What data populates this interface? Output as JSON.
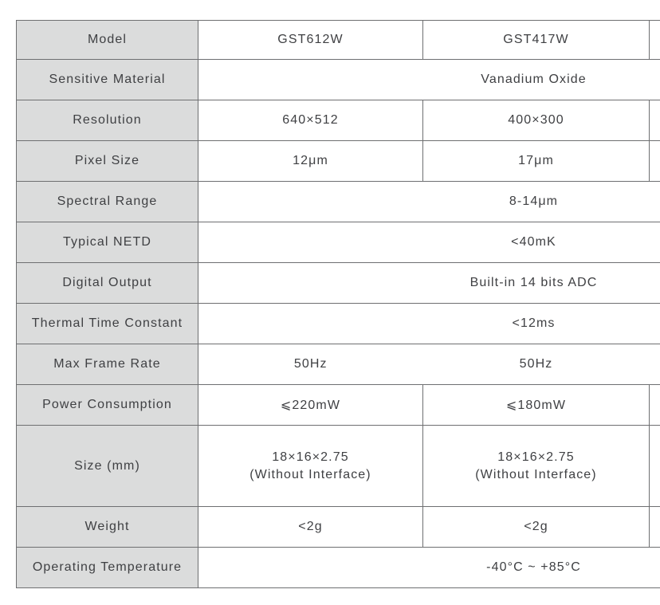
{
  "colors": {
    "header_cell_bg": "#dbdcdc",
    "grid_border": "#6e6f71",
    "text": "#3f4043",
    "page_bg": "#ffffff"
  },
  "table": {
    "rows": [
      {
        "label": "Model",
        "values": [
          "GST612W",
          "GST417W"
        ]
      },
      {
        "label": "Sensitive Material",
        "value": "Vanadium Oxide"
      },
      {
        "label": "Resolution",
        "values": [
          "640×512",
          "400×300"
        ]
      },
      {
        "label": "Pixel Size",
        "values": [
          "12μm",
          "17μm"
        ]
      },
      {
        "label": "Spectral Range",
        "value": "8-14μm"
      },
      {
        "label": "Typical NETD",
        "value": "<40mK"
      },
      {
        "label": "Digital Output",
        "value": "Built-in 14 bits ADC"
      },
      {
        "label": "Thermal Time Constant",
        "value": "<12ms"
      },
      {
        "label": "Max Frame Rate",
        "values": [
          "50Hz",
          "50Hz"
        ]
      },
      {
        "label": "Power Consumption",
        "values": [
          "⩽220mW",
          "⩽180mW"
        ]
      },
      {
        "label": "Size (mm)",
        "values": [
          "18×16×2.75",
          "18×16×2.75"
        ],
        "subvalues": [
          "(Without Interface)",
          "(Without Interface)"
        ]
      },
      {
        "label": "Weight",
        "values": [
          "<2g",
          "<2g"
        ]
      },
      {
        "label": "Operating Temperature",
        "value": "-40°C ~ +85°C"
      }
    ]
  }
}
